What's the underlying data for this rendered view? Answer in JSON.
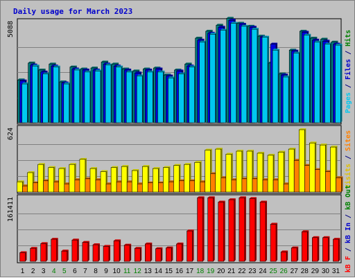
{
  "chart_data": {
    "type": "bar",
    "title": "Daily usage for March 2023",
    "x_labels": [
      "1",
      "2",
      "3",
      "4",
      "5",
      "6",
      "7",
      "8",
      "9",
      "10",
      "11",
      "12",
      "13",
      "14",
      "15",
      "16",
      "17",
      "18",
      "19",
      "20",
      "21",
      "22",
      "23",
      "24",
      "25",
      "26",
      "27",
      "28",
      "29",
      "30",
      "31"
    ],
    "weekend_days": [
      4,
      5,
      11,
      12,
      18,
      19,
      25,
      26
    ],
    "weekend_label_color": "#008000",
    "weekday_label_color": "#000000",
    "panels": [
      {
        "id": "hits",
        "ymax_label": "5088",
        "ylim": [
          0,
          5088
        ],
        "side_label": [
          {
            "text": "Pages",
            "color": "#00c8f0"
          },
          {
            "text": " / ",
            "color": "#000080"
          },
          {
            "text": "Files",
            "color": "#0000cc"
          },
          {
            "text": " / ",
            "color": "#000080"
          },
          {
            "text": "Hits",
            "color": "#008000"
          }
        ],
        "series": [
          {
            "key": "hits",
            "color": "#008080",
            "values": [
              2150,
              3000,
              2650,
              2950,
              2050,
              2800,
              2700,
              2750,
              3050,
              2950,
              2700,
              2600,
              2700,
              2750,
              2400,
              2650,
              2950,
              4250,
              4600,
              4900,
              5250,
              5000,
              4850,
              4350,
              3000,
              2450,
              3650,
              4600,
              4250,
              4200,
              4050
            ]
          },
          {
            "key": "files",
            "color": "#0000e0",
            "values": [
              2100,
              2900,
              2550,
              2850,
              2000,
              2700,
              2650,
              2650,
              2950,
              2850,
              2650,
              2500,
              2650,
              2700,
              2350,
              2600,
              2850,
              4150,
              4500,
              4800,
              5150,
              4950,
              4800,
              4300,
              3950,
              2400,
              3600,
              4550,
              4150,
              4100,
              3950
            ]
          },
          {
            "key": "pages",
            "color": "#00c8f0",
            "values": [
              1950,
              2850,
              2450,
              2800,
              1950,
              2650,
              2550,
              2600,
              2900,
              2800,
              2550,
              2350,
              2550,
              2550,
              2250,
              2450,
              2800,
              4050,
              4450,
              4650,
              5000,
              4850,
              4700,
              4300,
              3650,
              2300,
              3500,
              4400,
              4050,
              3950,
              3900
            ]
          }
        ]
      },
      {
        "id": "visits",
        "ymax_label": "624",
        "ylim": [
          0,
          624
        ],
        "side_label": [
          {
            "text": "Visits",
            "color": "#e0c000"
          },
          {
            "text": " / ",
            "color": "#000080"
          },
          {
            "text": "Sites",
            "color": "#ff8000"
          }
        ],
        "series": [
          {
            "key": "visits",
            "color": "#ffff00",
            "values": [
              100,
              190,
              270,
              240,
              230,
              270,
              320,
              230,
              200,
              240,
              250,
              210,
              250,
              230,
              240,
              260,
              270,
              290,
              410,
              420,
              370,
              400,
              400,
              380,
              360,
              390,
              420,
              610,
              480,
              460,
              440
            ]
          },
          {
            "key": "sites",
            "color": "#ff8000",
            "values": [
              60,
              90,
              110,
              100,
              80,
              120,
              130,
              120,
              80,
              100,
              100,
              80,
              90,
              90,
              100,
              110,
              110,
              100,
              180,
              140,
              120,
              130,
              130,
              120,
              120,
              80,
              310,
              260,
              220,
              200,
              140
            ]
          }
        ]
      },
      {
        "id": "kbytes",
        "ymax_label": "161411",
        "ylim": [
          0,
          161411
        ],
        "side_label": [
          {
            "text": "kB F",
            "color": "#ff0000"
          },
          {
            "text": " / ",
            "color": "#000080"
          },
          {
            "text": "kB In",
            "color": "#0000cc"
          },
          {
            "text": " / ",
            "color": "#000080"
          },
          {
            "text": "kB Out",
            "color": "#008000"
          }
        ],
        "series": [
          {
            "key": "kb_f",
            "color": "#ff0000",
            "values": [
              22000,
              33000,
              45000,
              56000,
              26000,
              54000,
              48000,
              42000,
              38000,
              52000,
              41000,
              33000,
              44000,
              32000,
              34000,
              44000,
              77000,
              161000,
              161000,
              150000,
              156000,
              161000,
              159000,
              150000,
              94000,
              24000,
              34000,
              75000,
              60000,
              60000,
              56000
            ]
          }
        ]
      }
    ]
  }
}
